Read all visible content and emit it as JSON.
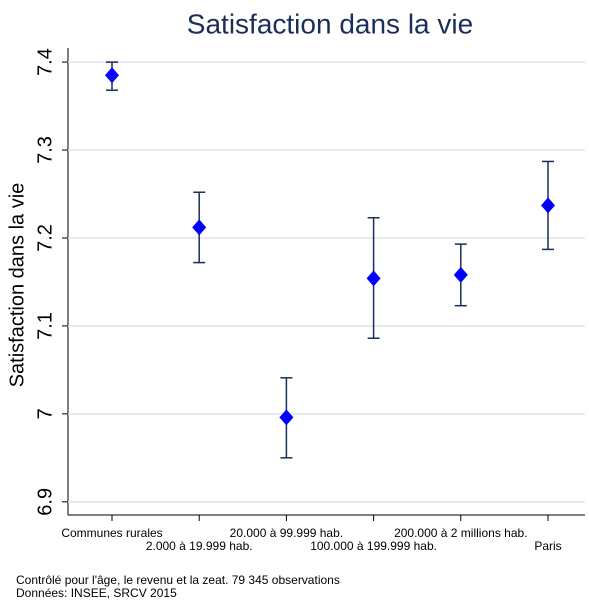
{
  "chart_data": {
    "type": "errorbar",
    "title": "Satisfaction dans la vie",
    "ylabel": "Satisfaction dans la vie",
    "categories": [
      "Communes rurales",
      "2.000 à 19.999 hab.",
      "20.000 à 99.999 hab.",
      "100.000 à 199.999 hab.",
      "200.000 à 2 millions hab.",
      "Paris"
    ],
    "values": [
      7.385,
      7.212,
      6.996,
      7.154,
      7.158,
      7.237
    ],
    "ci_low": [
      7.368,
      7.172,
      6.95,
      7.086,
      7.123,
      7.187
    ],
    "ci_high": [
      7.4,
      7.252,
      7.041,
      7.223,
      7.193,
      7.287
    ],
    "color": "#0000ff",
    "bar_color": "#1a2e5a",
    "ylim": [
      6.885,
      7.416
    ],
    "yticks": [
      6.9,
      7,
      7.1,
      7.2,
      7.3,
      7.4
    ],
    "grid": true,
    "notes": [
      "Contrôlé pour l'âge, le revenu et la zeat. 79 345 observations",
      "Données: INSEE, SRCV 2015"
    ]
  }
}
